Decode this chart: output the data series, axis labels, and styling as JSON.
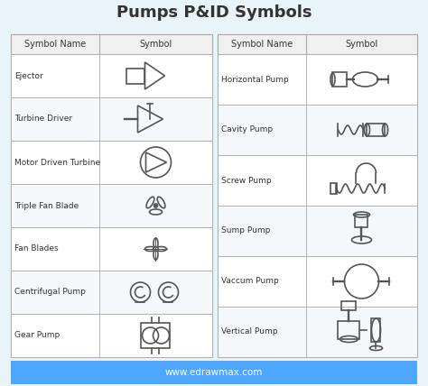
{
  "title": "Pumps P&ID Symbols",
  "title_fontsize": 13,
  "title_fontweight": "bold",
  "bg_color": "#e8f4f8",
  "table_bg": "#ffffff",
  "header_bg": "#f0f0f0",
  "border_color": "#aaaaaa",
  "text_color": "#333333",
  "footer_bg": "#4da6ff",
  "footer_text": "www.edrawmax.com",
  "footer_text_color": "#ffffff",
  "left_col1_header": "Symbol Name",
  "left_col2_header": "Symbol",
  "right_col1_header": "Symbol Name",
  "right_col2_header": "Symbol",
  "left_rows": [
    "Ejector",
    "Turbine Driver",
    "Motor Driven Turbine",
    "Triple Fan Blade",
    "Fan Blades",
    "Centrifugal Pump",
    "Gear Pump"
  ],
  "right_rows": [
    "Horizontal Pump",
    "Cavity Pump",
    "Screw Pump",
    "Sump Pump",
    "Vaccum Pump",
    "Vertical Pump"
  ],
  "symbol_color": "#555555",
  "line_width": 1.2
}
